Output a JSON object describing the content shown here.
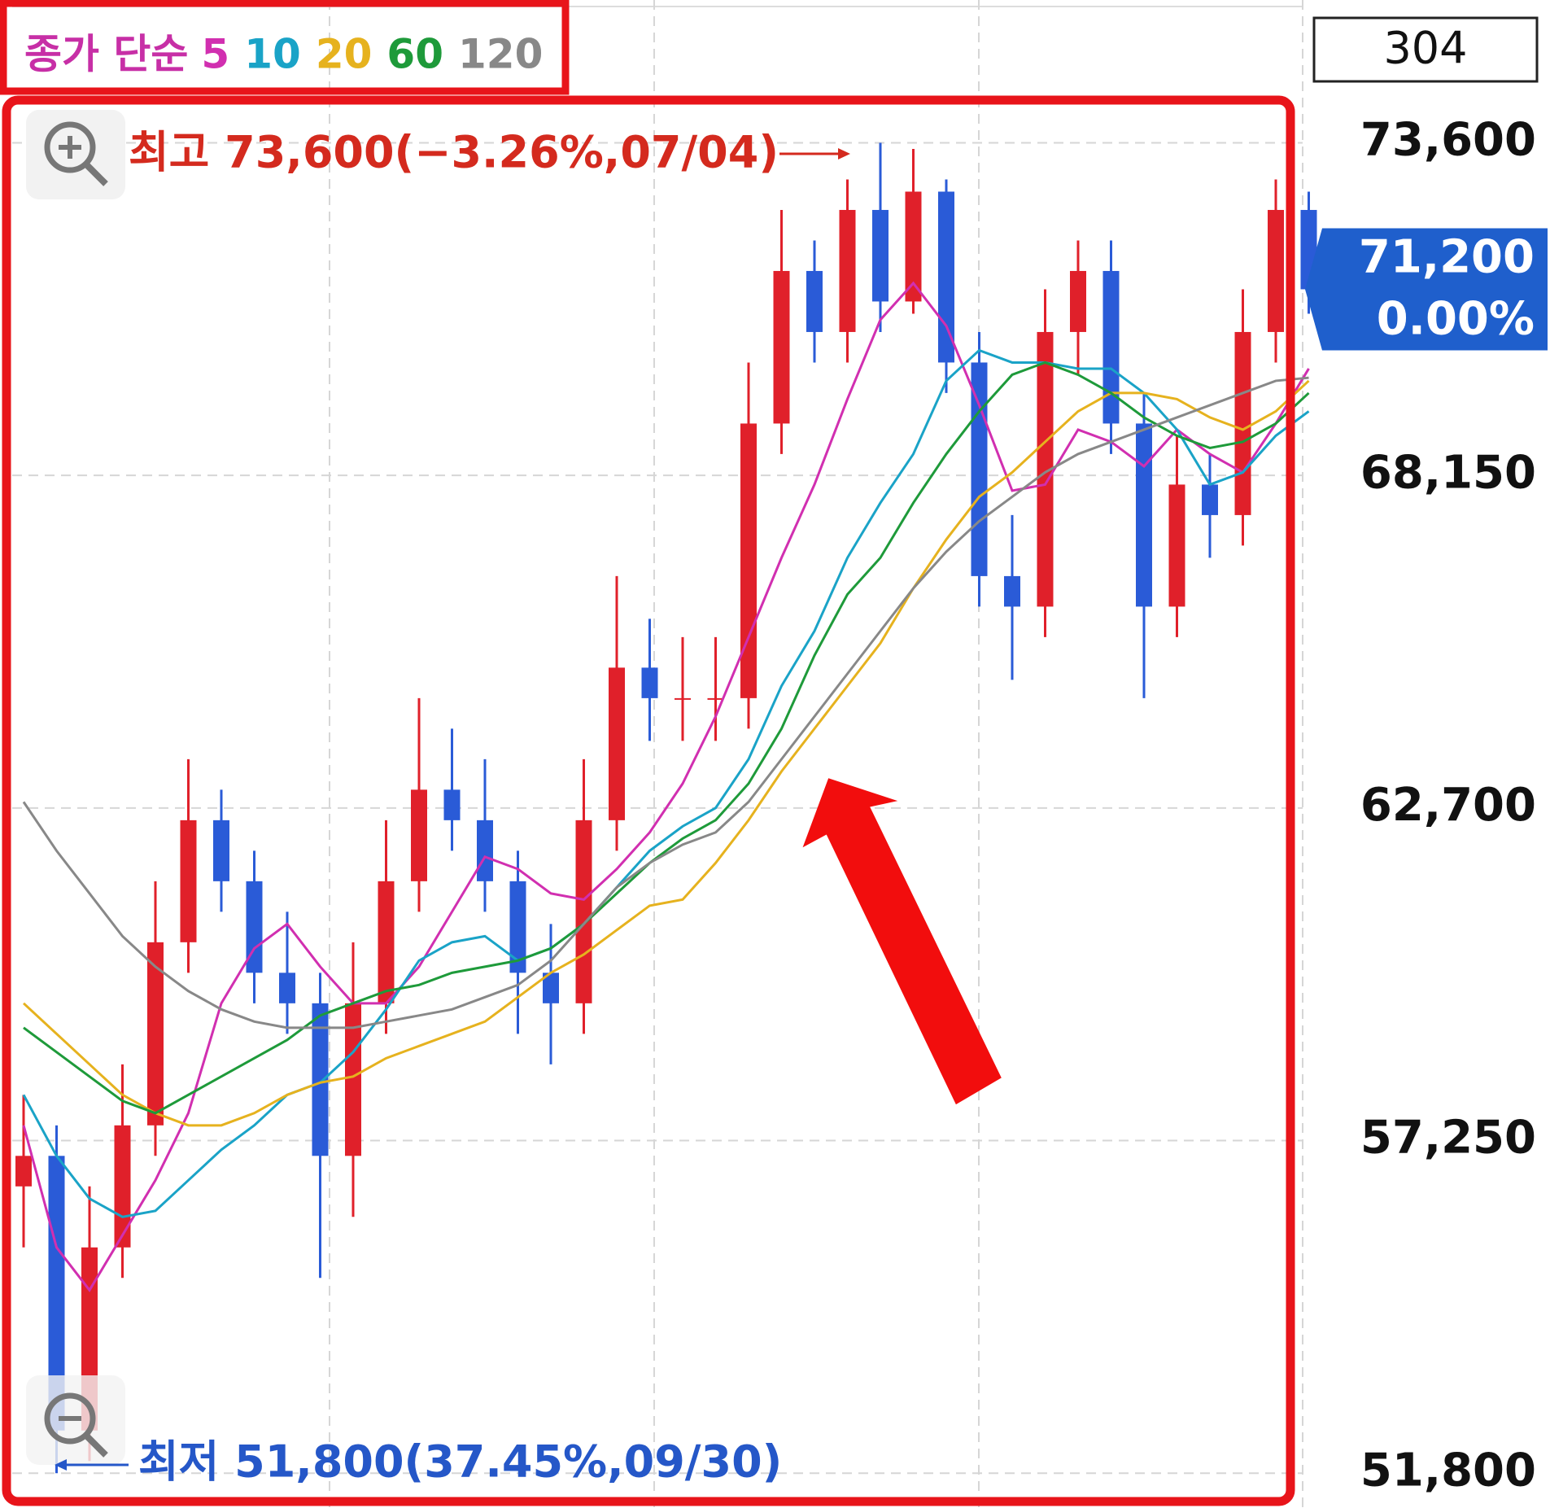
{
  "chart_data": {
    "type": "candlestick",
    "legend_title": "종가 단순",
    "period": 304,
    "open": [
      56500,
      57000,
      52500,
      55500,
      57500,
      60500,
      62500,
      61500,
      60000,
      59500,
      57000,
      59500,
      61500,
      63000,
      62500,
      61500,
      60000,
      59500,
      62500,
      65000,
      64500,
      64500,
      64500,
      69000,
      71500,
      70500,
      72500,
      71000,
      72800,
      70000,
      66500,
      66000,
      70500,
      71500,
      69000,
      66000,
      68000,
      67500,
      70500,
      72500
    ],
    "high": [
      58000,
      57500,
      56500,
      58500,
      61500,
      63500,
      63000,
      62000,
      61000,
      60000,
      60500,
      62500,
      64500,
      64000,
      63500,
      62000,
      60800,
      63500,
      66500,
      65800,
      65500,
      65500,
      70000,
      72500,
      72000,
      73000,
      73600,
      73500,
      73000,
      70500,
      67500,
      71200,
      72000,
      72000,
      69500,
      68800,
      68500,
      71200,
      73000,
      72800
    ],
    "low": [
      55500,
      51800,
      52000,
      55000,
      57000,
      60000,
      61000,
      59500,
      59000,
      55000,
      56000,
      59000,
      61000,
      62000,
      61000,
      59000,
      58500,
      59000,
      62000,
      63800,
      63800,
      63800,
      64000,
      68500,
      70000,
      70000,
      70500,
      70800,
      69500,
      66000,
      64800,
      65500,
      69800,
      68500,
      64500,
      65500,
      66800,
      67000,
      70000,
      70800
    ],
    "close": [
      57000,
      52500,
      55500,
      57500,
      60500,
      62500,
      61500,
      60000,
      59500,
      57000,
      59500,
      61500,
      63000,
      62500,
      61500,
      60000,
      59500,
      62500,
      65000,
      64500,
      64500,
      64500,
      69000,
      71500,
      70500,
      72500,
      71000,
      72800,
      70000,
      66500,
      66000,
      70500,
      71500,
      69000,
      66000,
      68000,
      67500,
      70500,
      72500,
      71200
    ],
    "up_color": "#e0202a",
    "down_color": "#2a5bd7",
    "series": [
      {
        "name": "5",
        "color": "#d12fb0",
        "values": [
          57500,
          55500,
          54800,
          55700,
          56600,
          57700,
          59500,
          60400,
          60800,
          60100,
          59500,
          59500,
          60100,
          61000,
          61900,
          61700,
          61300,
          61200,
          61700,
          62300,
          63100,
          64200,
          65500,
          66800,
          68000,
          69400,
          70700,
          71300,
          70600,
          69300,
          67900,
          68000,
          68900,
          68700,
          68300,
          68900,
          68500,
          68200,
          69000,
          69900
        ]
      },
      {
        "name": "10",
        "color": "#1aa3c7",
        "values": [
          58000,
          57000,
          56300,
          56000,
          56100,
          56600,
          57100,
          57500,
          58000,
          58200,
          58700,
          59400,
          60200,
          60500,
          60600,
          60200,
          60400,
          60800,
          61400,
          62000,
          62400,
          62700,
          63500,
          64700,
          65600,
          66800,
          67700,
          68500,
          69700,
          70200,
          70000,
          70000,
          69900,
          69900,
          69500,
          68900,
          68000,
          68200,
          68800,
          69200
        ]
      },
      {
        "name": "20",
        "color": "#e6b21e",
        "values": [
          59500,
          59000,
          58500,
          58000,
          57700,
          57500,
          57500,
          57700,
          58000,
          58200,
          58300,
          58600,
          58800,
          59000,
          59200,
          59600,
          60000,
          60300,
          60700,
          61100,
          61200,
          61800,
          62500,
          63300,
          64000,
          64700,
          65400,
          66300,
          67100,
          67800,
          68200,
          68700,
          69200,
          69500,
          69500,
          69400,
          69100,
          68900,
          69200,
          69700
        ]
      },
      {
        "name": "60",
        "color": "#1e9a3a",
        "values": [
          59100,
          58700,
          58300,
          57900,
          57700,
          58000,
          58300,
          58600,
          58900,
          59300,
          59500,
          59700,
          59800,
          60000,
          60100,
          60200,
          60400,
          60800,
          61300,
          61800,
          62200,
          62500,
          63100,
          64000,
          65200,
          66200,
          66800,
          67700,
          68500,
          69200,
          69800,
          70000,
          69800,
          69500,
          69100,
          68800,
          68600,
          68700,
          69000,
          69500
        ]
      },
      {
        "name": "120",
        "color": "#888888",
        "values": [
          62800,
          62000,
          61300,
          60600,
          60100,
          59700,
          59400,
          59200,
          59100,
          59100,
          59100,
          59200,
          59300,
          59400,
          59600,
          59800,
          60200,
          60800,
          61400,
          61800,
          62100,
          62300,
          62800,
          63500,
          64200,
          64900,
          65600,
          66300,
          66900,
          67400,
          67800,
          68200,
          68500,
          68700,
          68900,
          69100,
          69300,
          69500,
          69700,
          69750
        ]
      }
    ],
    "ylim": [
      51230,
      75940
    ],
    "yticks": [
      {
        "value": 51800,
        "label": "51,800"
      },
      {
        "value": 57250,
        "label": "57,250"
      },
      {
        "value": 62700,
        "label": "62,700"
      },
      {
        "value": 68150,
        "label": "68,150"
      },
      {
        "value": 73600,
        "label": "73,600"
      }
    ],
    "grid": true,
    "last_price": {
      "value": 71200,
      "label": "71,200"
    },
    "last_change": {
      "value": 0,
      "label": "0.00%"
    },
    "annotations": {
      "high": "최고 73,600(−3.26%,07/04)",
      "low": "최저 51,800(37.45%,09/30)"
    }
  }
}
